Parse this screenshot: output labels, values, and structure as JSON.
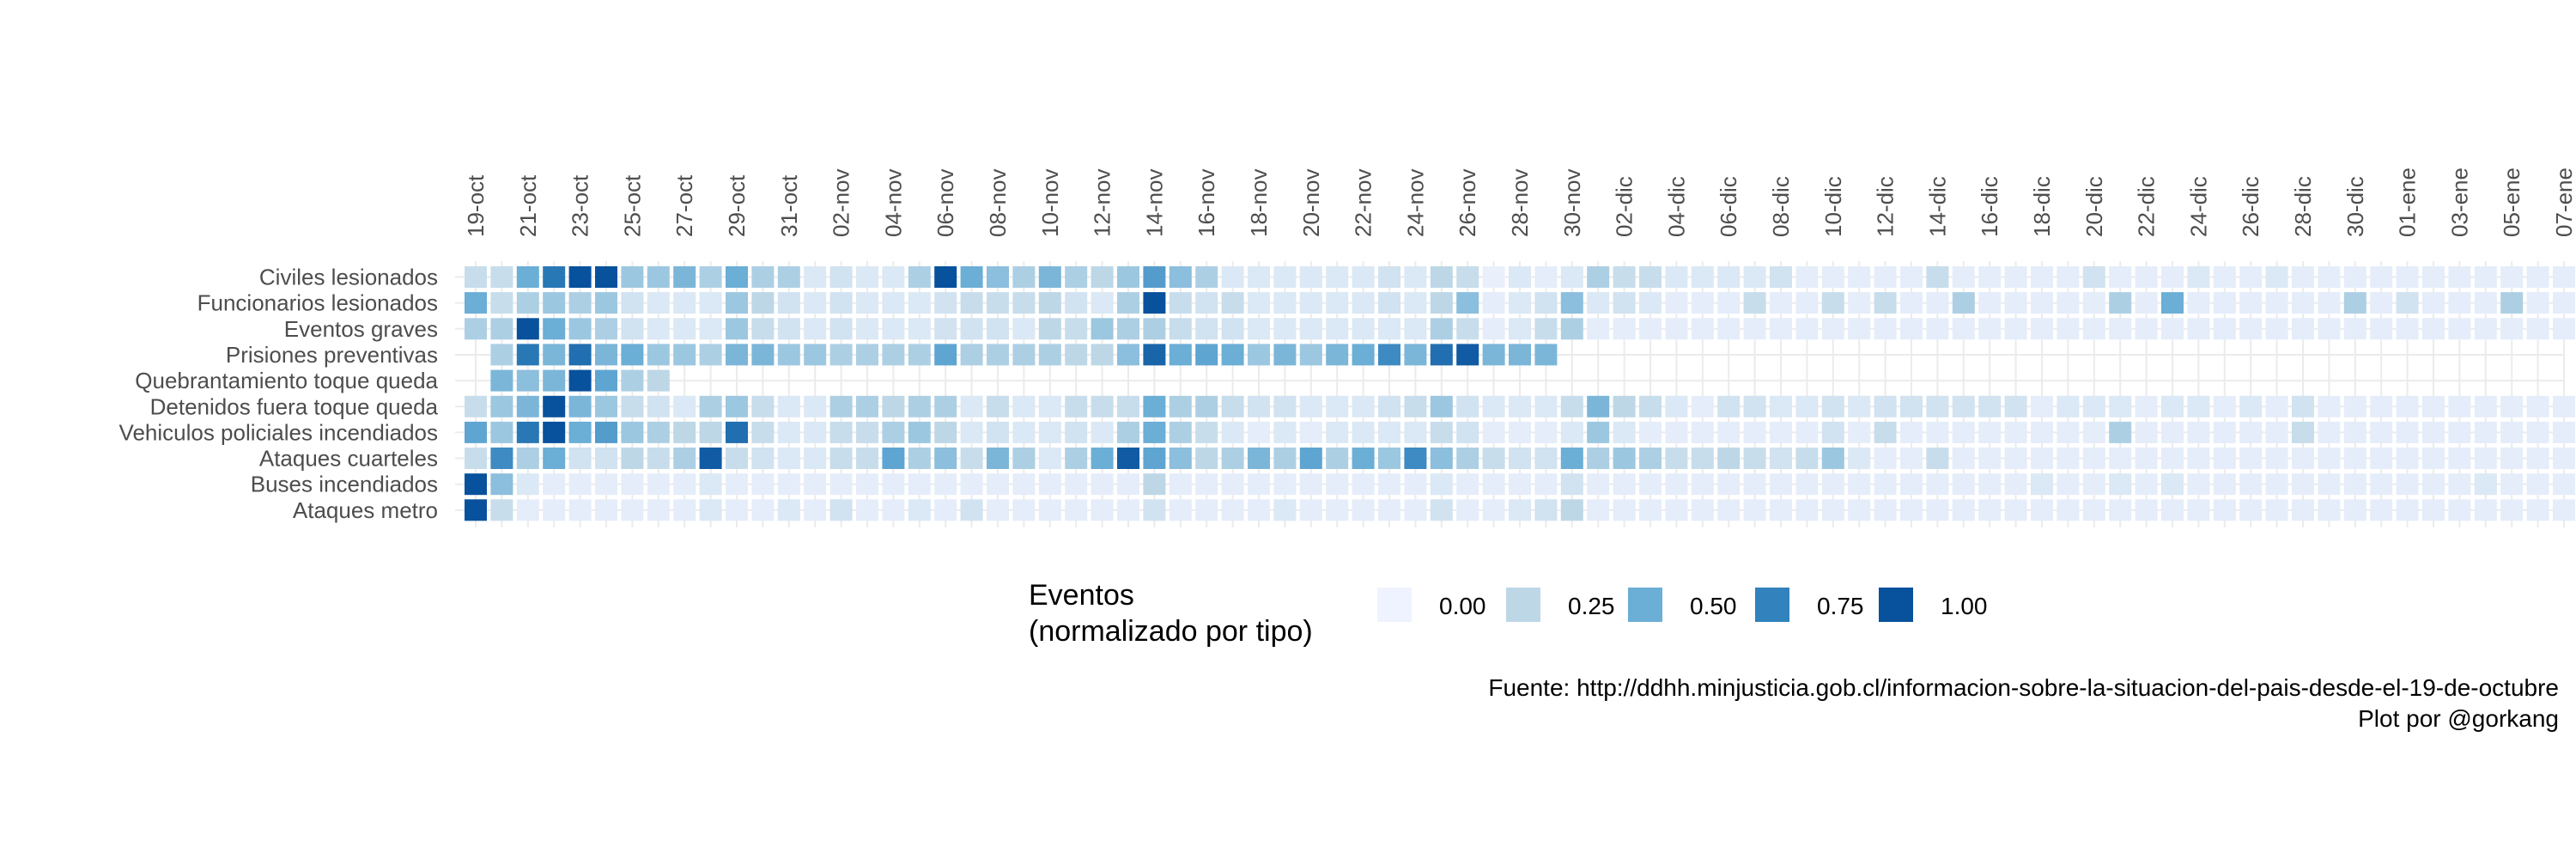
{
  "chart_data": {
    "type": "heatmap",
    "x_tick_labels": [
      "19-oct",
      "21-oct",
      "23-oct",
      "25-oct",
      "27-oct",
      "29-oct",
      "31-oct",
      "02-nov",
      "04-nov",
      "06-nov",
      "08-nov",
      "10-nov",
      "12-nov",
      "14-nov",
      "16-nov",
      "18-nov",
      "20-nov",
      "22-nov",
      "24-nov",
      "26-nov",
      "28-nov",
      "30-nov",
      "02-dic",
      "04-dic",
      "06-dic",
      "08-dic",
      "10-dic",
      "12-dic",
      "14-dic",
      "16-dic",
      "18-dic",
      "20-dic",
      "22-dic",
      "24-dic",
      "26-dic",
      "28-dic",
      "30-dic",
      "01-ene",
      "03-ene",
      "05-ene",
      "07-ene"
    ],
    "n_days": 81,
    "rows": [
      {
        "label": "Civiles lesionados",
        "values": [
          0.2,
          0.2,
          0.5,
          0.8,
          1.0,
          1.0,
          0.35,
          0.35,
          0.45,
          0.3,
          0.5,
          0.3,
          0.3,
          0.1,
          0.15,
          0.1,
          0.1,
          0.3,
          1.0,
          0.5,
          0.4,
          0.3,
          0.45,
          0.3,
          0.25,
          0.35,
          0.6,
          0.4,
          0.3,
          0.1,
          0.1,
          0.1,
          0.1,
          0.1,
          0.1,
          0.15,
          0.1,
          0.25,
          0.2,
          0.03,
          0.1,
          0.05,
          0.1,
          0.3,
          0.2,
          0.2,
          0.1,
          0.1,
          0.1,
          0.1,
          0.15,
          0.05,
          0.05,
          0.05,
          0.05,
          0.05,
          0.2,
          0.05,
          0.05,
          0.05,
          0.05,
          0.05,
          0.15,
          0.05,
          0.05,
          0.05,
          0.1,
          0.05,
          0.05,
          0.1,
          0.05,
          0.05,
          0.05,
          0.05,
          0.05,
          0.05,
          0.05,
          0.05,
          0.05,
          0.05,
          0.05
        ]
      },
      {
        "label": "Funcionarios lesionados",
        "values": [
          0.5,
          0.2,
          0.3,
          0.35,
          0.3,
          0.35,
          0.15,
          0.1,
          0.1,
          0.1,
          0.35,
          0.25,
          0.15,
          0.1,
          0.15,
          0.1,
          0.1,
          0.1,
          0.15,
          0.2,
          0.2,
          0.2,
          0.25,
          0.15,
          0.1,
          0.3,
          1.0,
          0.2,
          0.15,
          0.2,
          0.1,
          0.1,
          0.1,
          0.1,
          0.1,
          0.15,
          0.1,
          0.25,
          0.4,
          0.05,
          0.1,
          0.15,
          0.4,
          0.1,
          0.15,
          0.1,
          0.05,
          0.05,
          0.05,
          0.2,
          0.05,
          0.05,
          0.2,
          0.05,
          0.2,
          0.05,
          0.05,
          0.3,
          0.05,
          0.05,
          0.05,
          0.05,
          0.05,
          0.3,
          0.05,
          0.5,
          0.05,
          0.05,
          0.05,
          0.05,
          0.05,
          0.05,
          0.3,
          0.05,
          0.15,
          0.05,
          0.05,
          0.05,
          0.3,
          0.05,
          0.05
        ]
      },
      {
        "label": "Eventos graves",
        "values": [
          0.3,
          0.3,
          1.0,
          0.5,
          0.35,
          0.3,
          0.15,
          0.1,
          0.1,
          0.1,
          0.35,
          0.2,
          0.15,
          0.1,
          0.15,
          0.1,
          0.1,
          0.1,
          0.15,
          0.15,
          0.15,
          0.1,
          0.25,
          0.2,
          0.35,
          0.3,
          0.3,
          0.2,
          0.15,
          0.15,
          0.1,
          0.1,
          0.1,
          0.1,
          0.1,
          0.1,
          0.1,
          0.3,
          0.2,
          0.05,
          0.1,
          0.2,
          0.3,
          0.05,
          0.05,
          0.05,
          0.05,
          0.05,
          0.05,
          0.05,
          0.05,
          0.05,
          0.05,
          0.05,
          0.05,
          0.05,
          0.05,
          0.05,
          0.05,
          0.05,
          0.05,
          0.05,
          0.05,
          0.05,
          0.05,
          0.05,
          0.05,
          0.05,
          0.05,
          0.05,
          0.05,
          0.05,
          0.05,
          0.05,
          0.05,
          0.05,
          0.05,
          0.05,
          0.05,
          0.05,
          0.05
        ]
      },
      {
        "label": "Prisiones preventivas",
        "values": [
          null,
          0.3,
          0.8,
          0.45,
          0.85,
          0.45,
          0.5,
          0.35,
          0.35,
          0.3,
          0.45,
          0.45,
          0.35,
          0.35,
          0.3,
          0.3,
          0.3,
          0.3,
          0.55,
          0.3,
          0.3,
          0.3,
          0.3,
          0.25,
          0.25,
          0.4,
          0.9,
          0.5,
          0.55,
          0.5,
          0.35,
          0.45,
          0.35,
          0.45,
          0.5,
          0.7,
          0.45,
          0.85,
          0.95,
          0.45,
          0.45,
          0.45,
          null,
          null,
          null,
          null,
          null,
          null,
          null,
          null,
          null,
          null,
          null,
          null,
          null,
          null,
          null,
          null,
          null,
          null,
          null,
          null,
          null,
          null,
          null,
          null,
          null,
          null,
          null,
          null,
          null,
          null,
          null,
          null,
          null,
          null,
          null,
          null,
          null,
          null,
          null
        ]
      },
      {
        "label": "Quebrantamiento toque queda",
        "values": [
          null,
          0.45,
          0.4,
          0.45,
          1.0,
          0.55,
          0.3,
          0.25,
          null,
          null,
          null,
          null,
          null,
          null,
          null,
          null,
          null,
          null,
          null,
          null,
          null,
          null,
          null,
          null,
          null,
          null,
          null,
          null,
          null,
          null,
          null,
          null,
          null,
          null,
          null,
          null,
          null,
          null,
          null,
          null,
          null,
          null,
          null,
          null,
          null,
          null,
          null,
          null,
          null,
          null,
          null,
          null,
          null,
          null,
          null,
          null,
          null,
          null,
          null,
          null,
          null,
          null,
          null,
          null,
          null,
          null,
          null,
          null,
          null,
          null,
          null,
          null,
          null,
          null,
          null,
          null,
          null,
          null,
          null,
          null,
          null
        ]
      },
      {
        "label": "Detenidos fuera toque queda",
        "values": [
          0.2,
          0.35,
          0.45,
          1.0,
          0.45,
          0.35,
          0.2,
          0.15,
          0.1,
          0.3,
          0.35,
          0.2,
          0.1,
          0.1,
          0.3,
          0.3,
          0.25,
          0.3,
          0.3,
          0.1,
          0.2,
          0.1,
          0.1,
          0.2,
          0.2,
          0.2,
          0.5,
          0.3,
          0.3,
          0.2,
          0.15,
          0.15,
          0.1,
          0.1,
          0.1,
          0.15,
          0.2,
          0.35,
          0.15,
          0.1,
          0.1,
          0.1,
          0.2,
          0.45,
          0.25,
          0.2,
          0.1,
          0.05,
          0.15,
          0.15,
          0.1,
          0.1,
          0.15,
          0.1,
          0.15,
          0.15,
          0.15,
          0.15,
          0.15,
          0.15,
          0.05,
          0.1,
          0.1,
          0.1,
          0.05,
          0.1,
          0.1,
          0.05,
          0.1,
          0.05,
          0.15,
          0.05,
          0.05,
          0.05,
          0.05,
          0.05,
          0.05,
          0.05,
          0.05,
          0.05,
          0.05
        ]
      },
      {
        "label": "Vehiculos policiales incendiados",
        "values": [
          0.55,
          0.35,
          0.8,
          1.0,
          0.5,
          0.6,
          0.35,
          0.3,
          0.25,
          0.25,
          0.85,
          0.2,
          0.1,
          0.1,
          0.2,
          0.2,
          0.3,
          0.35,
          0.25,
          0.1,
          0.15,
          0.1,
          0.1,
          0.15,
          0.1,
          0.3,
          0.5,
          0.3,
          0.2,
          0.1,
          0.05,
          0.1,
          0.05,
          0.1,
          0.1,
          0.1,
          0.1,
          0.2,
          0.15,
          0.05,
          0.05,
          0.05,
          0.1,
          0.35,
          0.1,
          0.05,
          0.05,
          0.05,
          0.05,
          0.05,
          0.05,
          0.05,
          0.15,
          0.05,
          0.2,
          0.05,
          0.05,
          0.05,
          0.05,
          0.05,
          0.05,
          0.05,
          0.05,
          0.3,
          0.05,
          0.05,
          0.05,
          0.05,
          0.05,
          0.05,
          0.2,
          0.05,
          0.05,
          0.05,
          0.05,
          0.05,
          0.05,
          0.05,
          0.05,
          0.05,
          0.05
        ]
      },
      {
        "label": "Ataques cuarteles",
        "values": [
          0.2,
          0.7,
          0.3,
          0.5,
          0.15,
          0.15,
          0.25,
          0.2,
          0.3,
          0.95,
          0.2,
          0.15,
          0.1,
          0.1,
          0.2,
          0.2,
          0.55,
          0.3,
          0.4,
          0.2,
          0.45,
          0.3,
          0.1,
          0.3,
          0.5,
          0.95,
          0.55,
          0.4,
          0.25,
          0.3,
          0.45,
          0.3,
          0.55,
          0.3,
          0.5,
          0.35,
          0.7,
          0.4,
          0.3,
          0.2,
          0.15,
          0.15,
          0.5,
          0.3,
          0.35,
          0.3,
          0.2,
          0.2,
          0.25,
          0.2,
          0.15,
          0.2,
          0.35,
          0.1,
          0.05,
          0.05,
          0.2,
          0.05,
          0.05,
          0.05,
          0.05,
          0.05,
          0.05,
          0.05,
          0.05,
          0.05,
          0.05,
          0.05,
          0.05,
          0.05,
          0.05,
          0.05,
          0.05,
          0.05,
          0.05,
          0.05,
          0.05,
          0.05,
          0.05,
          0.05,
          0.05
        ]
      },
      {
        "label": "Buses incendiados",
        "values": [
          1.0,
          0.4,
          0.1,
          0.05,
          0.05,
          0.05,
          0.05,
          0.05,
          0.05,
          0.1,
          0.05,
          0.05,
          0.05,
          0.05,
          0.05,
          0.05,
          0.05,
          0.05,
          0.05,
          0.05,
          0.05,
          0.05,
          0.05,
          0.05,
          0.05,
          0.05,
          0.25,
          0.05,
          0.05,
          0.05,
          0.05,
          0.05,
          0.05,
          0.05,
          0.05,
          0.05,
          0.05,
          0.1,
          0.05,
          0.05,
          0.05,
          0.05,
          0.15,
          0.05,
          0.05,
          0.05,
          0.05,
          0.05,
          0.05,
          0.05,
          0.05,
          0.05,
          0.05,
          0.05,
          0.05,
          0.05,
          0.05,
          0.05,
          0.05,
          0.05,
          0.1,
          0.05,
          0.05,
          0.1,
          0.05,
          0.1,
          0.05,
          0.05,
          0.05,
          0.05,
          0.05,
          0.05,
          0.05,
          0.05,
          0.05,
          0.05,
          0.05,
          0.1,
          0.05,
          0.05,
          0.05
        ]
      },
      {
        "label": "Ataques metro",
        "values": [
          1.0,
          0.2,
          0.05,
          0.05,
          0.05,
          0.05,
          0.05,
          0.05,
          0.05,
          0.1,
          0.05,
          0.05,
          0.1,
          0.05,
          0.15,
          0.05,
          0.05,
          0.1,
          0.05,
          0.15,
          0.05,
          0.05,
          0.05,
          0.05,
          0.05,
          0.05,
          0.15,
          0.05,
          0.05,
          0.05,
          0.05,
          0.1,
          0.05,
          0.05,
          0.05,
          0.05,
          0.05,
          0.15,
          0.05,
          0.05,
          0.1,
          0.15,
          0.25,
          0.05,
          0.05,
          0.05,
          0.05,
          0.05,
          0.05,
          0.05,
          0.05,
          0.05,
          0.05,
          0.05,
          0.05,
          0.05,
          0.05,
          0.05,
          0.05,
          0.05,
          0.05,
          0.05,
          0.05,
          0.05,
          0.05,
          0.05,
          0.05,
          0.05,
          0.05,
          0.05,
          0.05,
          0.05,
          0.05,
          0.05,
          0.05,
          0.05,
          0.05,
          0.05,
          0.05,
          0.05,
          0.05
        ]
      }
    ],
    "legend": {
      "title_line1": "Eventos",
      "title_line2": "(normalizado por tipo)",
      "breaks": [
        "0.00",
        "0.25",
        "0.50",
        "0.75",
        "1.00"
      ],
      "break_values": [
        0,
        0.25,
        0.5,
        0.75,
        1.0
      ],
      "placement": "bottom"
    },
    "colors": {
      "low": "#eff3ff",
      "mid_low": "#bdd7e7",
      "mid": "#6baed6",
      "mid_high": "#3182bd",
      "high": "#08519c",
      "grid": "#ebebeb",
      "label_text": "#4d4d4d"
    },
    "grid": true
  },
  "caption": {
    "line1": "Fuente: http://ddhh.minjusticia.gob.cl/informacion-sobre-la-situacion-del-pais-desde-el-19-de-octubre",
    "line2": "Plot por @gorkang"
  }
}
